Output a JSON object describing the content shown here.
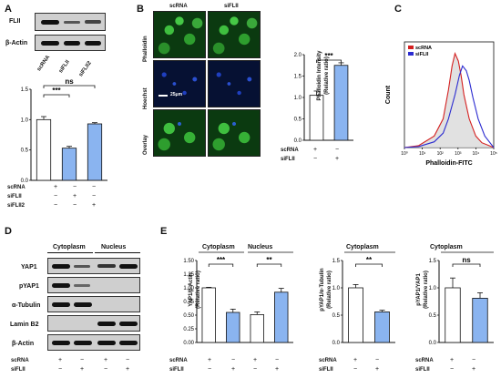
{
  "panels": {
    "A": {
      "letter": "A",
      "blot_rows": [
        "FLII",
        "β-Actin"
      ],
      "lanes": [
        "scRNA",
        "siFLII",
        "siFLII2"
      ],
      "sig": [
        "***",
        "ns"
      ],
      "rows": [
        {
          "label": "scRNA",
          "marks": [
            "+",
            "−",
            "−"
          ]
        },
        {
          "label": "siFLII",
          "marks": [
            "−",
            "+",
            "−"
          ]
        },
        {
          "label": "siFLII2",
          "marks": [
            "−",
            "−",
            "+"
          ]
        }
      ]
    },
    "B": {
      "letter": "B",
      "cols": [
        "scRNA",
        "siFLII"
      ],
      "rows": [
        "Phalloidin",
        "Hoechst",
        "Overlay"
      ],
      "scale": "25μm",
      "sig": "***",
      "ylabel": "Phalloidin Intensity",
      "ylabel2": "(Relative ratio)",
      "cond": [
        {
          "label": "scRNA",
          "marks": [
            "+",
            "−"
          ]
        },
        {
          "label": "siFLII",
          "marks": [
            "−",
            "+"
          ]
        }
      ]
    },
    "C": {
      "letter": "C",
      "legend": [
        "scRNA",
        "siFLII"
      ],
      "ylabel": "Count",
      "xlabel": "Phalloidin-FITC",
      "xticks": [
        "10⁰",
        "10¹",
        "10²",
        "10³",
        "10⁴",
        "10⁵"
      ]
    },
    "D": {
      "letter": "D",
      "headers": [
        "Cytoplasm",
        "Nucleus"
      ],
      "blot_rows": [
        "YAP1",
        "pYAP1",
        "α-Tubulin",
        "Lamin B2",
        "β-Actin"
      ],
      "cond": [
        {
          "label": "scRNA",
          "marks": [
            "+",
            "−",
            "+",
            "−"
          ]
        },
        {
          "label": "siFLII",
          "marks": [
            "−",
            "+",
            "−",
            "+"
          ]
        }
      ]
    },
    "E": {
      "letter": "E",
      "titles": [
        "Cytoplasm",
        "Nucleus",
        "Cytoplasm",
        "Cytoplasm"
      ],
      "sig": [
        "***",
        "**",
        "**",
        "ns"
      ],
      "ylabels": [
        [
          "YAP1/β-Actin",
          "(Relative ratio)"
        ],
        [
          "pYAP1/α-Tubulin",
          "(Relative ratio)"
        ],
        [
          "pYAP1/YAP1",
          "(Relative ratio)"
        ]
      ],
      "cond4": [
        {
          "label": "scRNA",
          "marks": [
            "+",
            "−",
            "+",
            "−"
          ]
        },
        {
          "label": "siFLII",
          "marks": [
            "−",
            "+",
            "−",
            "+"
          ]
        }
      ],
      "cond2": [
        {
          "label": "scRNA",
          "marks": [
            "+",
            "−"
          ]
        },
        {
          "label": "siFLII",
          "marks": [
            "−",
            "+"
          ]
        }
      ]
    }
  },
  "chart_data": [
    {
      "type": "bar",
      "panel": "A",
      "categories": [
        "scRNA",
        "siFLII",
        "siFLII2"
      ],
      "values": [
        1.0,
        0.53,
        0.93
      ],
      "errors": [
        0.05,
        0.03,
        0.02
      ],
      "ylim": [
        0,
        1.5
      ],
      "yticks": [
        "0.0",
        "0.5",
        "1.0",
        "1.5"
      ],
      "colors": [
        "#ffffff",
        "#8ab4f0",
        "#8ab4f0"
      ]
    },
    {
      "type": "bar",
      "panel": "B",
      "categories": [
        "scRNA",
        "siFLII"
      ],
      "values": [
        1.05,
        1.75
      ],
      "errors": [
        0.1,
        0.06
      ],
      "ylim": [
        0,
        2.0
      ],
      "yticks": [
        "0.0",
        "0.5",
        "1.0",
        "1.5",
        "2.0"
      ],
      "colors": [
        "#ffffff",
        "#8ab4f0"
      ]
    },
    {
      "type": "area",
      "panel": "C",
      "series": [
        {
          "name": "scRNA",
          "color": "#d42020",
          "x": [
            100,
            300,
            1000,
            2000,
            3000,
            4000,
            5000,
            6500,
            8000,
            10000,
            15000,
            25000,
            40000,
            70000,
            100000
          ],
          "y": [
            0,
            2,
            12,
            30,
            60,
            85,
            98,
            90,
            75,
            55,
            30,
            12,
            5,
            2,
            0
          ]
        },
        {
          "name": "siFLII",
          "color": "#2b2bd0",
          "x": [
            100,
            300,
            1000,
            2000,
            3000,
            5000,
            7000,
            9000,
            12000,
            15000,
            20000,
            30000,
            50000,
            80000,
            100000
          ],
          "y": [
            0,
            1,
            6,
            15,
            30,
            55,
            75,
            85,
            80,
            70,
            52,
            30,
            12,
            4,
            0
          ]
        }
      ],
      "xscale": "log",
      "xlim": [
        100,
        100000
      ],
      "ylim": [
        0,
        110
      ]
    },
    {
      "type": "bar",
      "panel": "E1",
      "categories": [
        "Cytoplasm scRNA",
        "Cytoplasm siFLII",
        "Nucleus scRNA",
        "Nucleus siFLII"
      ],
      "values": [
        1.0,
        0.55,
        0.51,
        0.92
      ],
      "errors": [
        0.01,
        0.06,
        0.05,
        0.07
      ],
      "ylim": [
        0,
        1.5
      ],
      "yticks": [
        "0.00",
        "0.25",
        "0.50",
        "0.75",
        "1.00",
        "1.25",
        "1.50"
      ],
      "colors": [
        "#ffffff",
        "#8ab4f0",
        "#ffffff",
        "#8ab4f0"
      ]
    },
    {
      "type": "bar",
      "panel": "E2",
      "categories": [
        "scRNA",
        "siFLII"
      ],
      "values": [
        1.0,
        0.56
      ],
      "errors": [
        0.06,
        0.03
      ],
      "ylim": [
        0,
        1.5
      ],
      "yticks": [
        "0.0",
        "0.5",
        "1.0",
        "1.5"
      ],
      "colors": [
        "#ffffff",
        "#8ab4f0"
      ]
    },
    {
      "type": "bar",
      "panel": "E3",
      "categories": [
        "scRNA",
        "siFLII"
      ],
      "values": [
        1.0,
        0.81
      ],
      "errors": [
        0.18,
        0.1
      ],
      "ylim": [
        0,
        1.5
      ],
      "yticks": [
        "0.0",
        "0.5",
        "1.0",
        "1.5"
      ],
      "colors": [
        "#ffffff",
        "#8ab4f0"
      ]
    }
  ]
}
